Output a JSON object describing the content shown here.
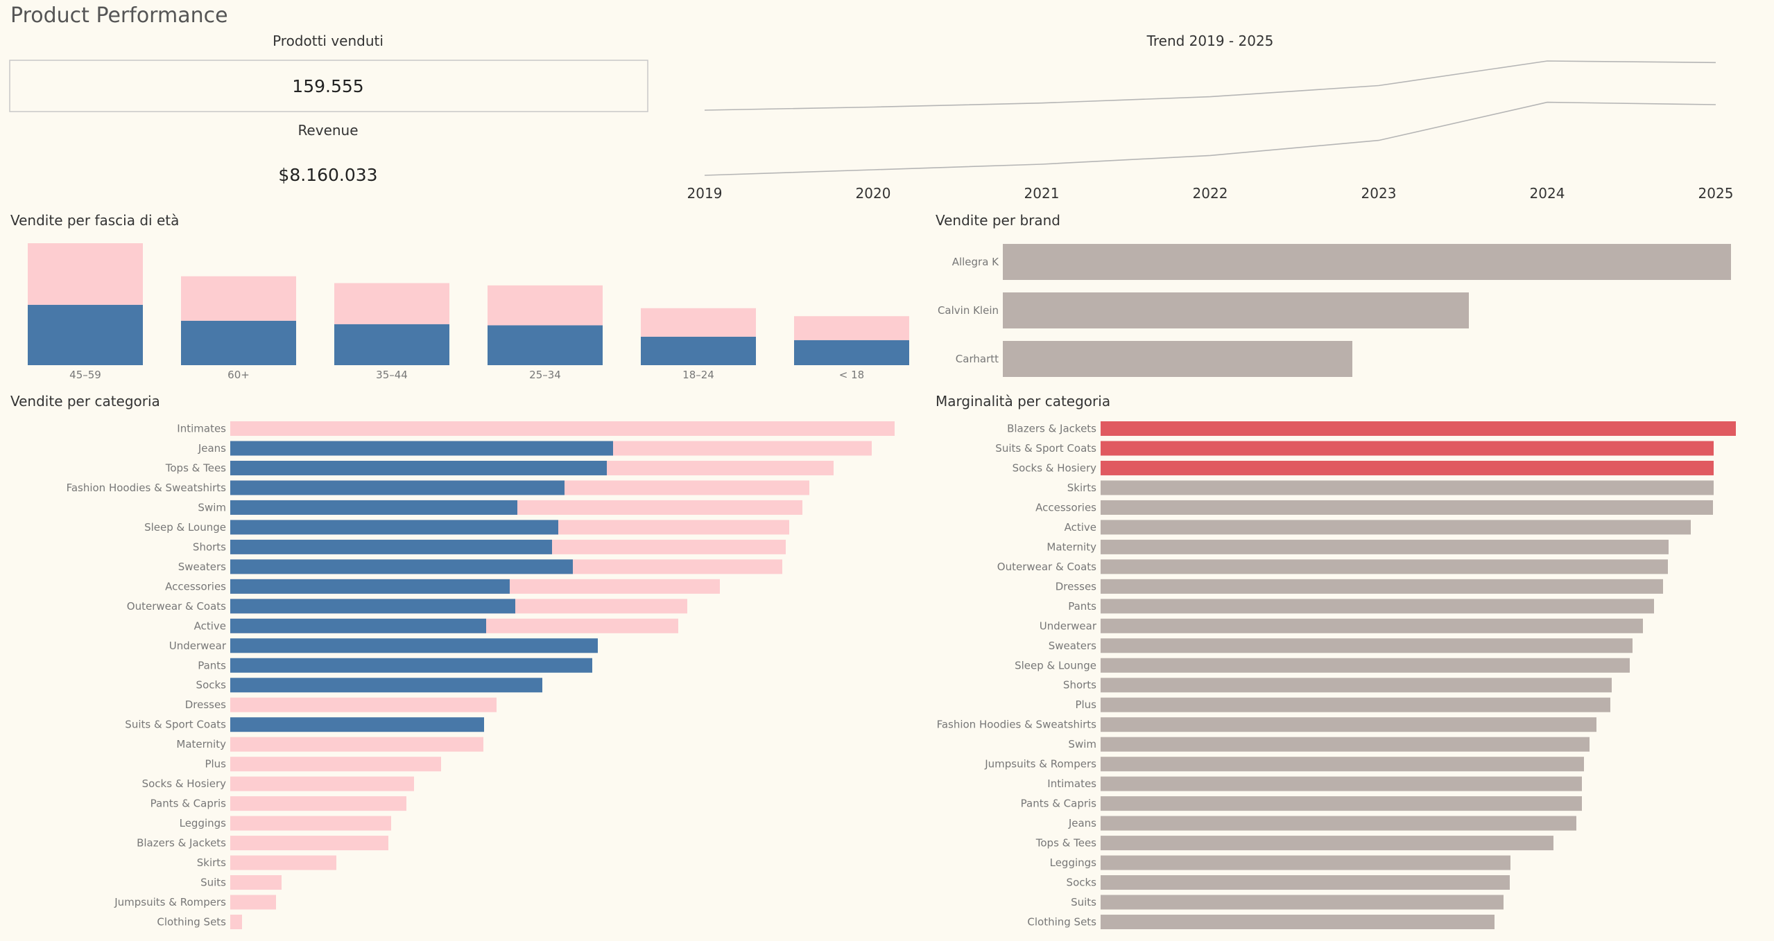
{
  "page": {
    "title": "Product Performance"
  },
  "kpi": {
    "sold_title": "Prodotti venduti",
    "sold_value": "159.555",
    "revenue_title": "Revenue",
    "revenue_value": "$8.160.033"
  },
  "colors": {
    "background": "#fdfaf1",
    "blue": "#4878a8",
    "pink": "#fdcdd0",
    "grey": "#bab0ab",
    "red": "#e05a60",
    "line": "#b5b5b5"
  },
  "chart_data": [
    {
      "id": "trend",
      "type": "line",
      "title": "Trend 2019 - 2025",
      "x": [
        "2019",
        "2020",
        "2021",
        "2022",
        "2023",
        "2024",
        "2025"
      ],
      "series": [
        {
          "values": [
            0.82,
            0.86,
            0.91,
            0.99,
            1.13,
            1.44,
            1.42
          ]
        },
        {
          "values": [
            0.0,
            0.07,
            0.14,
            0.25,
            0.44,
            0.92,
            0.89
          ]
        }
      ]
    },
    {
      "id": "age",
      "type": "bar",
      "title": "Vendite per fascia di età",
      "categories": [
        "45–59",
        "60+",
        "35–44",
        "25–34",
        "18–24",
        "< 18"
      ],
      "series": [
        {
          "values": [
            53,
            39,
            36,
            35,
            25,
            22
          ]
        },
        {
          "values": [
            54,
            39,
            36,
            35,
            25,
            21
          ]
        }
      ]
    },
    {
      "id": "brand",
      "type": "bar",
      "orientation": "horizontal",
      "title": "Vendite per brand",
      "categories": [
        "Allegra K",
        "Calvin Klein",
        "Carhartt"
      ],
      "values": [
        100,
        64,
        48
      ]
    },
    {
      "id": "category",
      "type": "bar",
      "orientation": "horizontal",
      "title": "Vendite per categoria",
      "categories": [
        "Intimates",
        "Jeans",
        "Tops & Tees",
        "Fashion Hoodies & Sweatshirts",
        "Swim",
        "Sleep & Lounge",
        "Shorts",
        "Sweaters",
        "Accessories",
        "Outerwear & Coats",
        "Active",
        "Underwear",
        "Pants",
        "Socks",
        "Dresses",
        "Suits & Sport Coats",
        "Maternity",
        "Plus",
        "Socks & Hosiery",
        "Pants & Capris",
        "Leggings",
        "Blazers & Jackets",
        "Skirts",
        "Suits",
        "Jumpsuits & Rompers",
        "Clothing Sets"
      ],
      "series": [
        {
          "values": [
            0,
            552,
            543,
            482,
            414,
            473,
            464,
            494,
            403,
            411,
            369,
            530,
            522,
            450,
            0,
            366,
            0,
            0,
            0,
            0,
            0,
            0,
            0,
            0,
            0,
            0
          ]
        },
        {
          "values": [
            958,
            925,
            870,
            835,
            825,
            806,
            801,
            796,
            706,
            659,
            646,
            0,
            0,
            0,
            384,
            0,
            365,
            304,
            265,
            254,
            232,
            228,
            153,
            74,
            66,
            17
          ]
        }
      ]
    },
    {
      "id": "margin",
      "type": "bar",
      "orientation": "horizontal",
      "title": "Marginalità per categoria",
      "categories": [
        "Blazers & Jackets",
        "Suits & Sport Coats",
        "Socks & Hosiery",
        "Skirts",
        "Accessories",
        "Active",
        "Maternity",
        "Outerwear & Coats",
        "Dresses",
        "Pants",
        "Underwear",
        "Sweaters",
        "Sleep & Lounge",
        "Shorts",
        "Plus",
        "Fashion Hoodies & Sweatshirts",
        "Swim",
        "Jumpsuits & Rompers",
        "Intimates",
        "Pants & Capris",
        "Jeans",
        "Tops & Tees",
        "Leggings",
        "Socks",
        "Suits",
        "Clothing Sets"
      ],
      "values": [
        916,
        884,
        884,
        884,
        883,
        851,
        819,
        818,
        811,
        798,
        782,
        767,
        763,
        737,
        735,
        715,
        705,
        697,
        694,
        694,
        686,
        653,
        591,
        590,
        581,
        568
      ],
      "highlight_count": 3
    }
  ]
}
